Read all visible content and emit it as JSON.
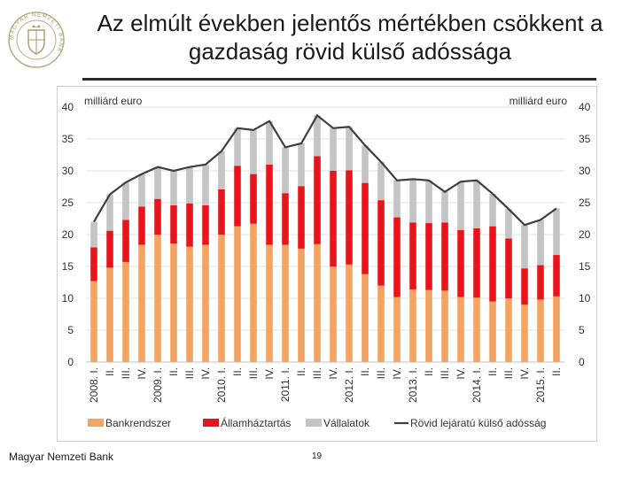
{
  "page": {
    "title_line1": "Az elmúlt években jelentős mértékben csökkent a",
    "title_line2": "gazdaság rövid külső adóssága",
    "footer": "Magyar Nemzeti Bank",
    "page_number": "19",
    "logo_text": "MAGYAR NEMZETI BANK"
  },
  "colors": {
    "bank": "#F4A460",
    "govt": "#E8141B",
    "corp": "#C4C4C4",
    "line": "#3F3F3F",
    "axis_text": "#333333"
  },
  "chart_data": {
    "type": "bar",
    "stacked": true,
    "y_unit_left": "milliárd euro",
    "y_unit_right": "milliárd euro",
    "ylim": [
      0,
      40
    ],
    "yticks": [
      0,
      5,
      10,
      15,
      20,
      25,
      30,
      35,
      40
    ],
    "categories": [
      "2008. I.",
      "II.",
      "III.",
      "IV.",
      "2009. I.",
      "II.",
      "III.",
      "IV.",
      "2010. I.",
      "II.",
      "III.",
      "IV.",
      "2011. I.",
      "II.",
      "III.",
      "IV.",
      "2012. I.",
      "II.",
      "III.",
      "IV.",
      "2013. I.",
      "II.",
      "III.",
      "IV.",
      "2014. I.",
      "II.",
      "III.",
      "IV.",
      "2015. I.",
      "II."
    ],
    "series": [
      {
        "name": "Bankrendszer",
        "key": "bank",
        "values": [
          12.7,
          14.8,
          15.7,
          18.4,
          20.0,
          18.6,
          18.1,
          18.4,
          20.0,
          21.3,
          21.7,
          18.4,
          18.4,
          17.8,
          18.5,
          15.0,
          15.3,
          13.8,
          12.0,
          10.2,
          11.4,
          11.3,
          11.2,
          10.2,
          10.1,
          9.5,
          10.0,
          9.0,
          9.8,
          10.3
        ]
      },
      {
        "name": "Államháztartás",
        "key": "govt",
        "values": [
          5.3,
          5.8,
          6.6,
          6.0,
          5.6,
          6.0,
          6.8,
          6.2,
          7.1,
          9.5,
          7.8,
          12.6,
          8.1,
          9.8,
          13.8,
          15.0,
          14.8,
          14.3,
          13.4,
          12.5,
          10.5,
          10.5,
          10.7,
          10.5,
          10.9,
          11.8,
          9.4,
          5.7,
          5.4,
          6.5
        ]
      },
      {
        "name": "Vállalatok",
        "key": "corp",
        "values": [
          4.0,
          5.7,
          5.9,
          5.1,
          5.0,
          5.4,
          5.7,
          6.4,
          6.0,
          5.9,
          6.9,
          6.8,
          7.2,
          6.7,
          6.4,
          6.7,
          6.8,
          5.9,
          6.0,
          5.8,
          6.8,
          6.7,
          4.8,
          7.6,
          7.5,
          5.1,
          4.6,
          6.8,
          7.1,
          7.3
        ]
      }
    ],
    "line_series": {
      "name": "Rövid lejáratú külső adósság",
      "key": "line",
      "values": [
        22.0,
        26.3,
        28.2,
        29.5,
        30.6,
        30.0,
        30.6,
        31.0,
        33.1,
        36.7,
        36.4,
        37.8,
        33.7,
        34.3,
        38.7,
        36.7,
        36.9,
        34.0,
        31.4,
        28.5,
        28.7,
        28.5,
        26.7,
        28.3,
        28.5,
        26.4,
        24.0,
        21.5,
        22.3,
        24.1
      ]
    },
    "legend": [
      "Bankrendszer",
      "Államháztartás",
      "Vállalatok",
      "Rövid lejáratú külső adósság"
    ],
    "legend_position": "bottom"
  }
}
